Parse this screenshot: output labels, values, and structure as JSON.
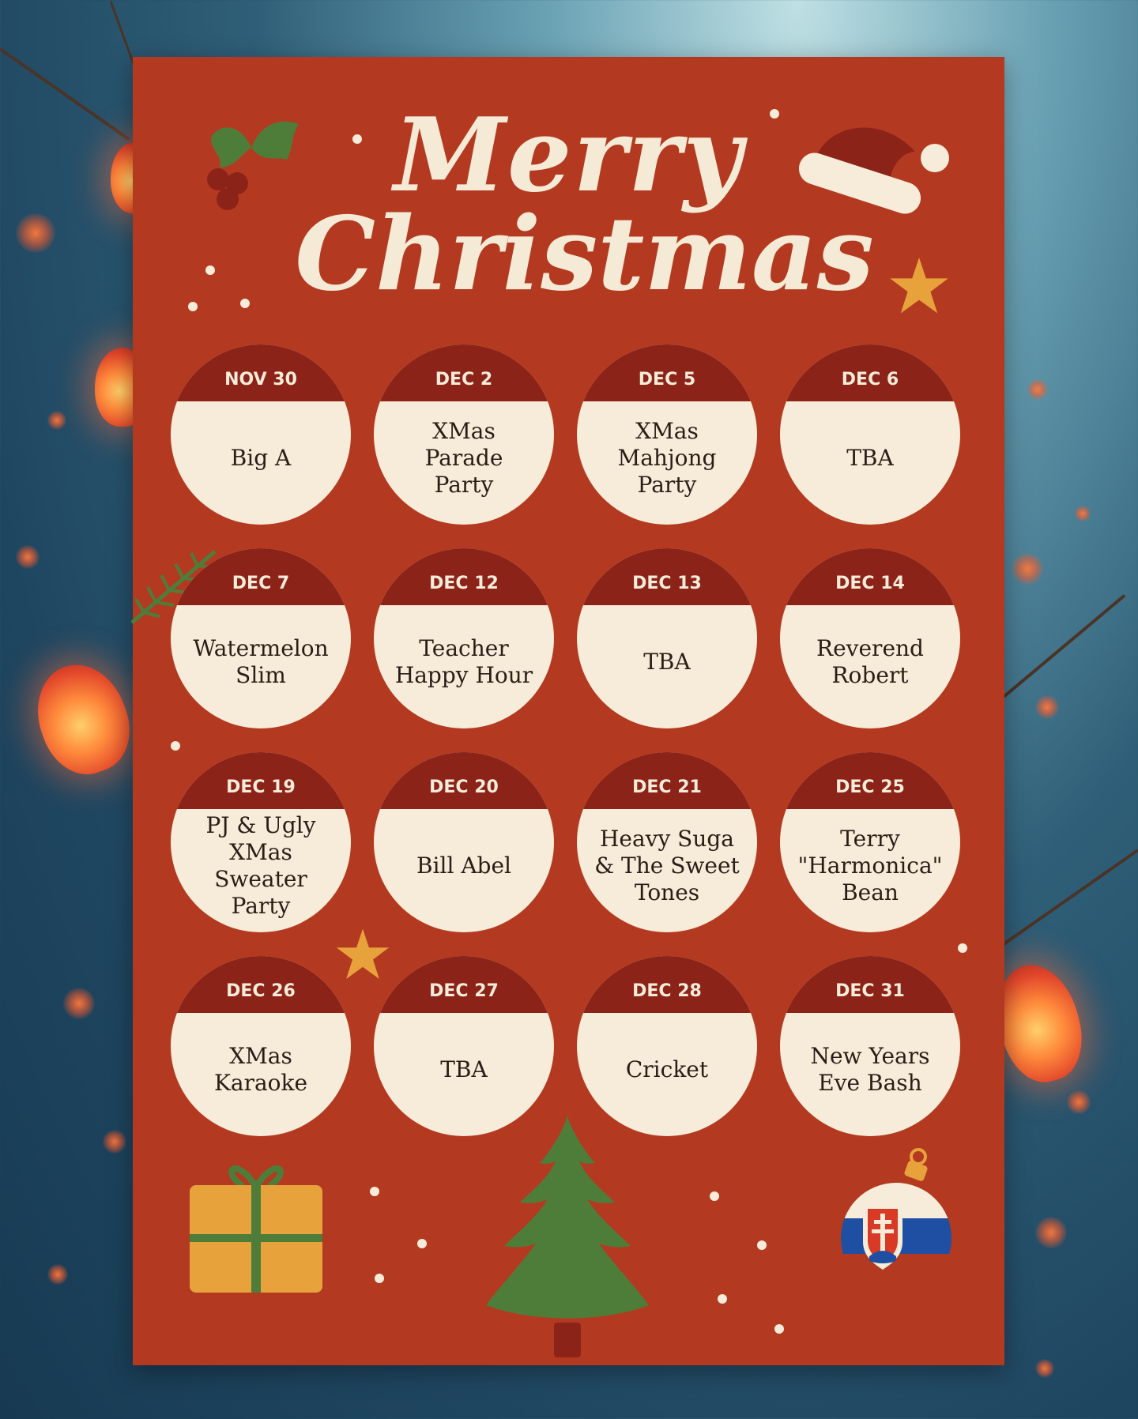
{
  "title": {
    "line1": "Merry",
    "line2": "Christmas"
  },
  "events": [
    {
      "date": "NOV 30",
      "name": "Big A"
    },
    {
      "date": "DEC 2",
      "name": "XMas\nParade\nParty"
    },
    {
      "date": "DEC 5",
      "name": "XMas\nMahjong\nParty"
    },
    {
      "date": "DEC 6",
      "name": "TBA"
    },
    {
      "date": "DEC 7",
      "name": "Watermelon\nSlim"
    },
    {
      "date": "DEC 12",
      "name": "Teacher\nHappy Hour"
    },
    {
      "date": "DEC 13",
      "name": "TBA"
    },
    {
      "date": "DEC 14",
      "name": "Reverend\nRobert"
    },
    {
      "date": "DEC 19",
      "name": "PJ & Ugly\nXMas\nSweater\nParty"
    },
    {
      "date": "DEC 20",
      "name": "Bill Abel"
    },
    {
      "date": "DEC 21",
      "name": "Heavy Suga\n& The Sweet\nTones"
    },
    {
      "date": "DEC 25",
      "name": "Terry\n\"Harmonica\"\nBean"
    },
    {
      "date": "DEC 26",
      "name": "XMas\nKaraoke"
    },
    {
      "date": "DEC 27",
      "name": "TBA"
    },
    {
      "date": "DEC 28",
      "name": "Cricket"
    },
    {
      "date": "DEC 31",
      "name": "New Years\nEve Bash"
    }
  ],
  "decorations": {
    "holly": "holly-icon",
    "santa_hat": "santa-hat-icon",
    "star": "star-icon",
    "pine_branch": "pine-branch-icon",
    "gift": "gift-icon",
    "tree": "christmas-tree-icon",
    "ornament": "slovak-flag-ornament-icon"
  },
  "colors": {
    "poster": "#b33a20",
    "band": "#8c2318",
    "cream": "#f6ecd9",
    "text": "#2a1d17",
    "star": "#e8a23c",
    "green": "#4e7d3a"
  }
}
